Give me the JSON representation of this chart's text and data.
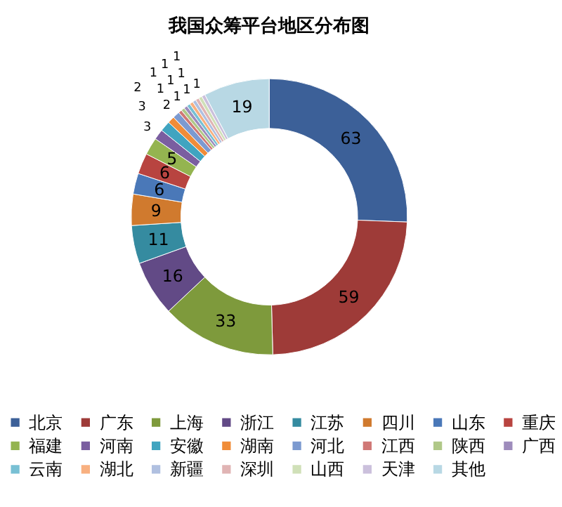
{
  "chart_data": {
    "type": "donut",
    "title": "我国众筹平台地区分布图",
    "categories": [
      "北京",
      "广东",
      "上海",
      "浙江",
      "江苏",
      "四川",
      "山东",
      "重庆",
      "福建",
      "河南",
      "安徽",
      "湖南",
      "河北",
      "江西",
      "陕西",
      "广西",
      "云南",
      "湖北",
      "新疆",
      "深圳",
      "山西",
      "天津",
      "其他"
    ],
    "values": [
      63,
      59,
      33,
      16,
      11,
      9,
      6,
      6,
      5,
      3,
      3,
      2,
      2,
      1,
      1,
      1,
      1,
      1,
      1,
      1,
      1,
      1,
      19
    ],
    "colors": [
      "#3c6098",
      "#9e3b38",
      "#7e9a3c",
      "#624a86",
      "#358ba0",
      "#d07a2e",
      "#4a78b8",
      "#b84440",
      "#94b450",
      "#7a5ea0",
      "#40a4c0",
      "#f08c38",
      "#7c9ad0",
      "#d07876",
      "#b0c888",
      "#9e8cbc",
      "#78c0d4",
      "#f8b080",
      "#b0c0e0",
      "#e0b4b4",
      "#d0e0b8",
      "#cbc0dc",
      "#b8d8e4"
    ],
    "data_labels": true,
    "legend": "bottom"
  }
}
